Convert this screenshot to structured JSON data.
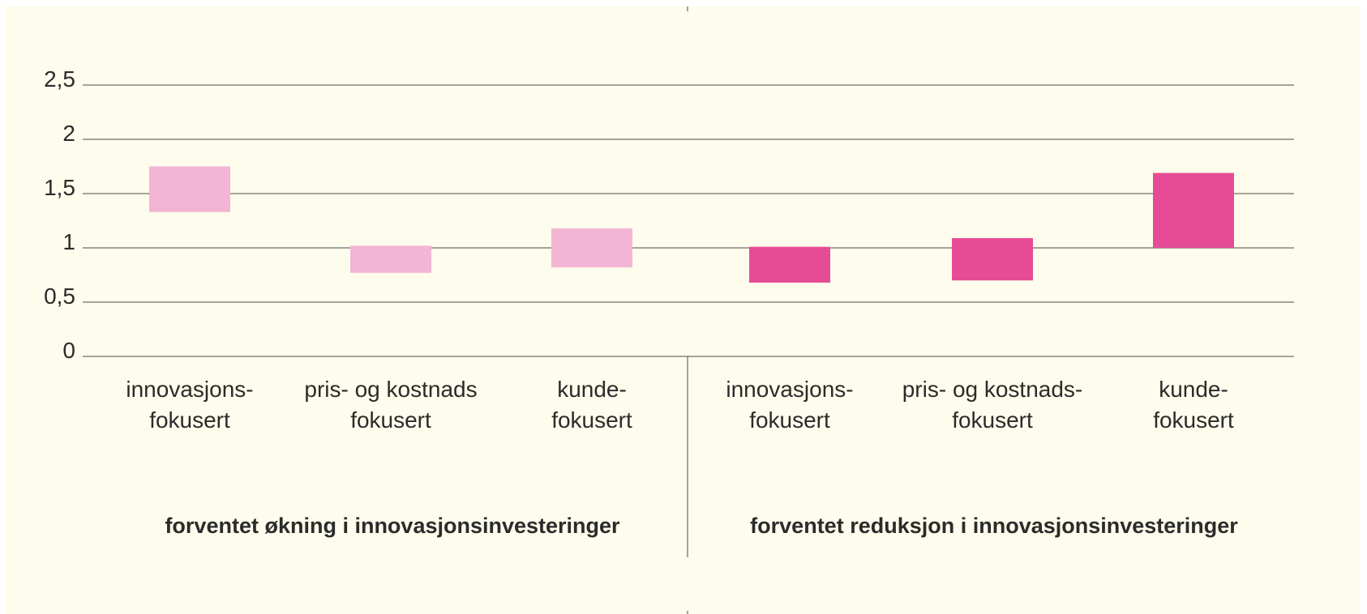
{
  "chart_data": {
    "type": "floating-bar",
    "title": "",
    "xlabel": "",
    "ylabel": "",
    "ylim": [
      0,
      2.5
    ],
    "yticks": [
      "0",
      "0,5",
      "1",
      "1,5",
      "2",
      "2,5"
    ],
    "grid": true,
    "colors": {
      "light": "#f2b5d4",
      "dark": "#e64b95",
      "background": "#fefcec",
      "grid": "#4a4a4a",
      "text": "#2b2b2b"
    },
    "groups": [
      {
        "label": "forventet økning i innovasjonsinvesteringer",
        "color": "#f2b5d4",
        "bars": [
          {
            "label_lines": [
              "innovasjons-",
              "fokusert"
            ],
            "low": 1.33,
            "high": 1.75
          },
          {
            "label_lines": [
              "pris- og kostnads",
              "fokusert"
            ],
            "low": 0.77,
            "high": 1.02
          },
          {
            "label_lines": [
              "kunde-",
              "fokusert"
            ],
            "low": 0.82,
            "high": 1.18
          }
        ]
      },
      {
        "label": "forventet reduksjon i innovasjonsinvesteringer",
        "color": "#e64b95",
        "bars": [
          {
            "label_lines": [
              "innovasjons-",
              "fokusert"
            ],
            "low": 0.68,
            "high": 1.01
          },
          {
            "label_lines": [
              "pris- og kostnads-",
              "fokusert"
            ],
            "low": 0.7,
            "high": 1.09
          },
          {
            "label_lines": [
              "kunde-",
              "fokusert"
            ],
            "low": 1.0,
            "high": 1.69
          }
        ]
      }
    ]
  }
}
